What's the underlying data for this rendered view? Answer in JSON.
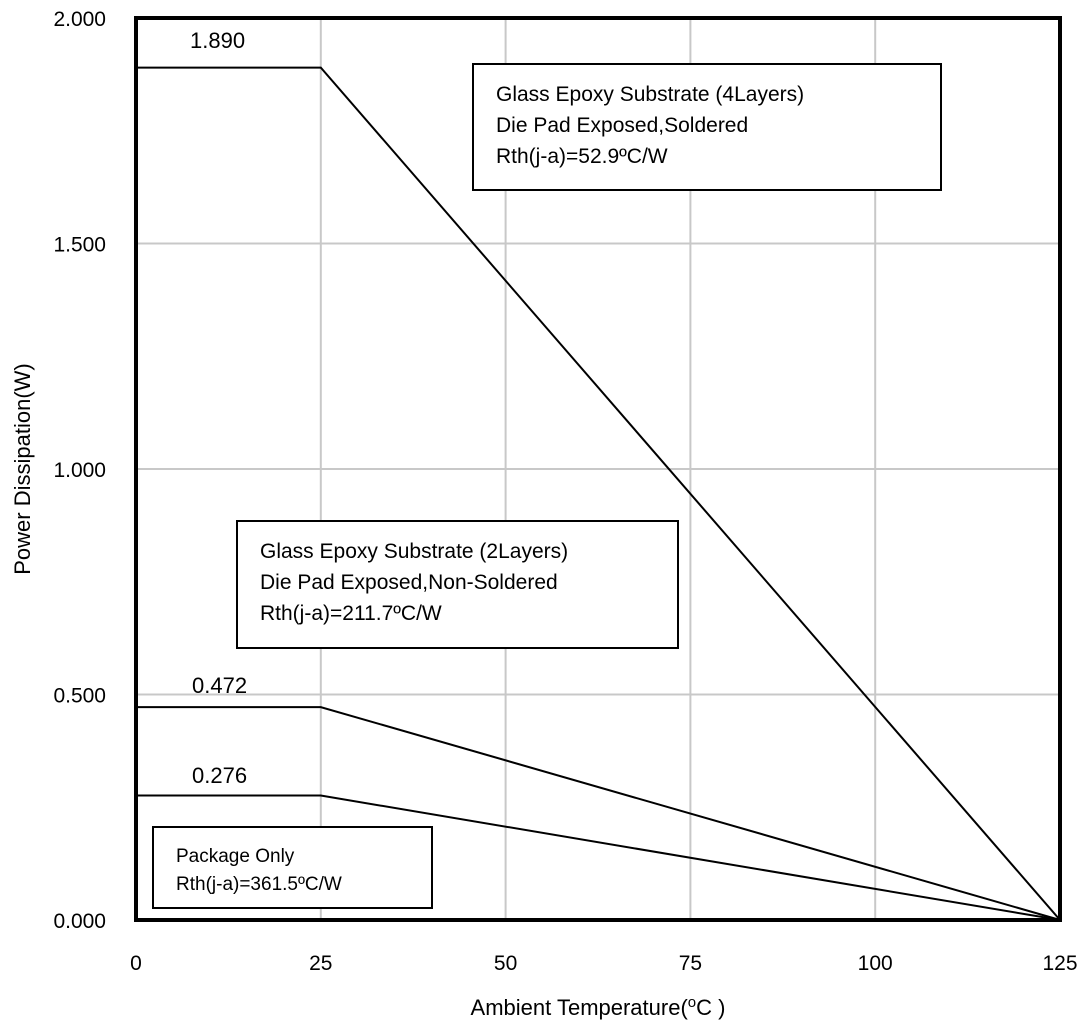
{
  "chart_data": {
    "type": "line",
    "title": "",
    "xlabel": "Ambient Temperature(",
    "xlabel_unit": "C )",
    "xlabel_superscript": "o",
    "ylabel": "Power Dissipation(W)",
    "xlim": [
      0,
      125
    ],
    "ylim": [
      0,
      2
    ],
    "grid": true,
    "x_ticks": [
      "0",
      "25",
      "50",
      "75",
      "100",
      "125"
    ],
    "x_tick_values": [
      0,
      25,
      50,
      75,
      100,
      125
    ],
    "y_ticks": [
      "0.000",
      "0.500",
      "1.000",
      "1.500",
      "2.000"
    ],
    "y_tick_values": [
      0,
      0.5,
      1.0,
      1.5,
      2.0
    ],
    "series": [
      {
        "x": [
          0,
          25,
          125
        ],
        "y": [
          1.89,
          1.89,
          0
        ],
        "label": "1.890"
      },
      {
        "x": [
          0,
          25,
          125
        ],
        "y": [
          0.472,
          0.472,
          0
        ],
        "label": "0.472"
      },
      {
        "x": [
          0,
          25,
          125
        ],
        "y": [
          0.276,
          0.276,
          0
        ],
        "label": "0.276"
      }
    ],
    "annotations": [
      {
        "lines": [
          "Glass Epoxy Substrate (4Layers)",
          "Die Pad Exposed,Soldered",
          "Rth(j-a)=52.9ºC/W"
        ]
      },
      {
        "lines": [
          "Glass Epoxy Substrate (2Layers)",
          "Die Pad Exposed,Non-Soldered",
          "Rth(j-a)=211.7ºC/W"
        ]
      },
      {
        "lines": [
          "Package Only",
          "Rth(j-a)=361.5ºC/W"
        ]
      }
    ]
  }
}
